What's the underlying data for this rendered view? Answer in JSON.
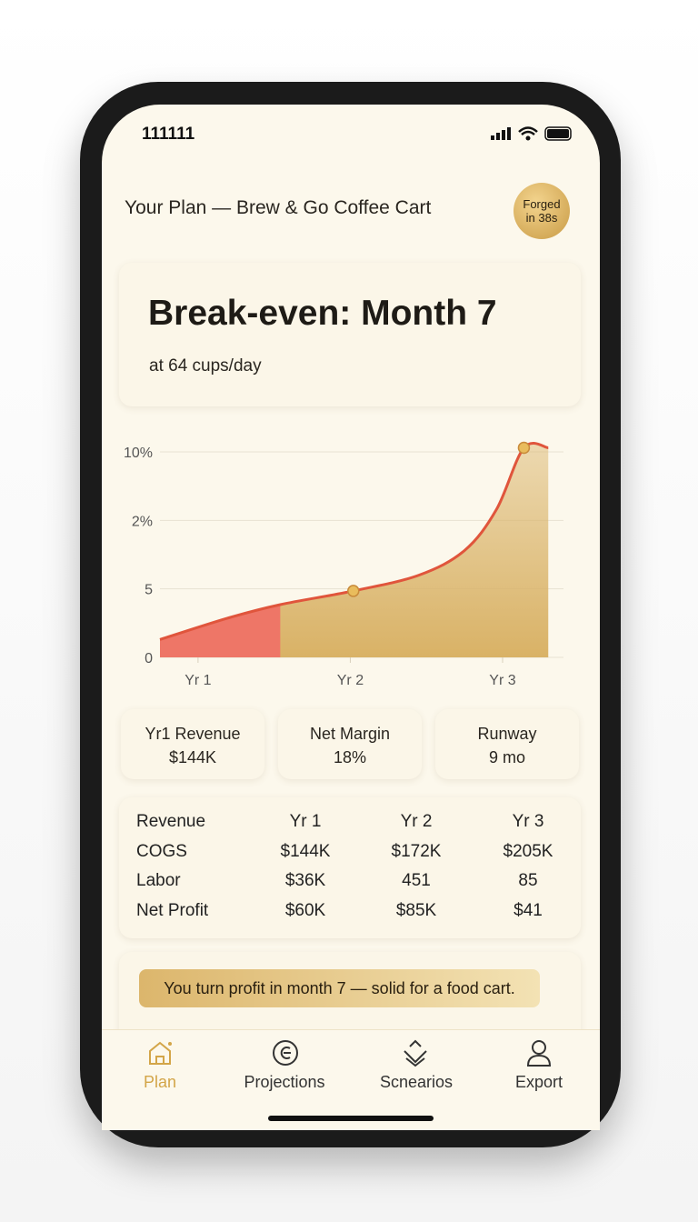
{
  "status_bar": {
    "time": "111111"
  },
  "header": {
    "title": "Your Plan — Brew & Go Coffee Cart",
    "badge": "Forged in 38s"
  },
  "hero": {
    "title": "Break-even: Month 7",
    "subtitle": "at 64 cups/day"
  },
  "chart_data": {
    "type": "area",
    "x": [
      0.75,
      1.19,
      1.54,
      2.02,
      2.45,
      2.75,
      2.96,
      3.14,
      3.3
    ],
    "values": [
      1.3,
      2.85,
      3.85,
      4.85,
      6.0,
      7.8,
      10.8,
      15.3,
      15.3
    ],
    "xlim": [
      0.75,
      3.4
    ],
    "ylim": [
      0,
      15.5
    ],
    "xticks": [
      {
        "value": 1,
        "label": "Yr 1"
      },
      {
        "value": 2,
        "label": "Yr 2"
      },
      {
        "value": 3,
        "label": "Yr 3"
      }
    ],
    "yticks": [
      0,
      5,
      {
        "value": 10,
        "label": "2%"
      },
      {
        "value": 15,
        "label": "10%"
      }
    ],
    "grid": true,
    "line_color": "#e0553c",
    "fill_color": "#d9b266",
    "loss_color": "#ee7667",
    "breakeven_x": 1.54,
    "markers": [
      3,
      7
    ]
  },
  "kpis": [
    {
      "label": "Yr1 Revenue",
      "value": "$144K"
    },
    {
      "label": "Net Margin",
      "value": "18%"
    },
    {
      "label": "Runway",
      "value": "9 mo"
    }
  ],
  "table": {
    "header": [
      "Revenue",
      "Yr 1",
      "Yr 2",
      "Yr 3"
    ],
    "rows": [
      [
        "COGS",
        "$144K",
        "$172K",
        "$205K"
      ],
      [
        "Labor",
        "$36K",
        "451",
        "85"
      ],
      [
        "Net Profit",
        "$60K",
        "$85K",
        "$41"
      ]
    ]
  },
  "note": "You turn profit in month 7 — solid for a food cart.",
  "tabs": [
    "Plan",
    "Projections",
    "Scnearios",
    "Export"
  ]
}
